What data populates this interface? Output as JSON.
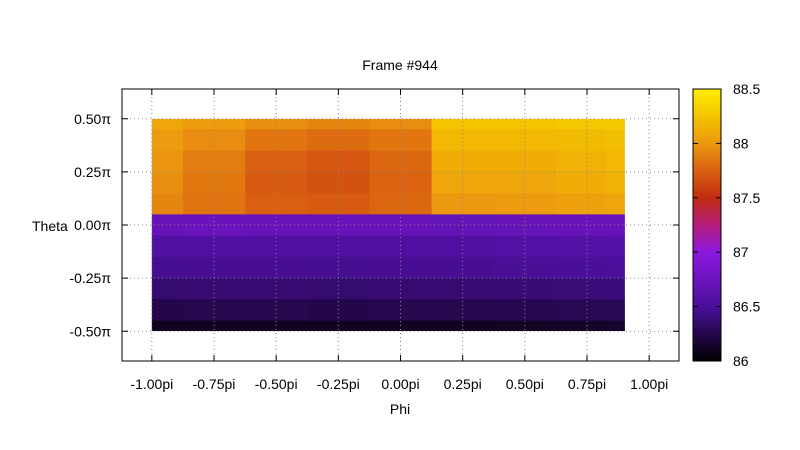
{
  "chart_data": {
    "type": "heatmap",
    "title": "Frame #944",
    "xlabel": "Phi",
    "ylabel": "Theta",
    "x_range": [
      -1.0,
      1.0
    ],
    "y_range": [
      -0.5,
      0.5
    ],
    "x_plot_range": [
      -1.12,
      1.12
    ],
    "y_plot_range": [
      -0.64,
      0.64
    ],
    "x_ticks": [
      {
        "value": -1.0,
        "label": "-1.00pi"
      },
      {
        "value": -0.75,
        "label": "-0.75pi"
      },
      {
        "value": -0.5,
        "label": "-0.50pi"
      },
      {
        "value": -0.25,
        "label": "-0.25pi"
      },
      {
        "value": 0.0,
        "label": "0.00pi"
      },
      {
        "value": 0.25,
        "label": "0.25pi"
      },
      {
        "value": 0.5,
        "label": "0.50pi"
      },
      {
        "value": 0.75,
        "label": "0.75pi"
      },
      {
        "value": 1.0,
        "label": "1.00pi"
      }
    ],
    "y_ticks": [
      {
        "value": 0.5,
        "label": "0.50π"
      },
      {
        "value": 0.25,
        "label": "0.25π"
      },
      {
        "value": 0.0,
        "label": "0.00π"
      },
      {
        "value": -0.25,
        "label": "-0.25π"
      },
      {
        "value": -0.5,
        "label": "-0.50π"
      }
    ],
    "colorbar": {
      "min": 86,
      "max": 88.5,
      "ticks": [
        {
          "value": 88.5,
          "label": "88.5"
        },
        {
          "value": 88,
          "label": "88"
        },
        {
          "value": 87.5,
          "label": "87.5"
        },
        {
          "value": 87,
          "label": "87"
        },
        {
          "value": 86.5,
          "label": "86.5"
        },
        {
          "value": 86,
          "label": "86"
        }
      ],
      "stops": [
        {
          "offset": 0.0,
          "color": "#000000"
        },
        {
          "offset": 0.2,
          "color": "#4a0f9a"
        },
        {
          "offset": 0.4,
          "color": "#8c18e0"
        },
        {
          "offset": 0.5,
          "color": "#b61d7a"
        },
        {
          "offset": 0.6,
          "color": "#c02d10"
        },
        {
          "offset": 0.7,
          "color": "#d96010"
        },
        {
          "offset": 0.8,
          "color": "#ec9810"
        },
        {
          "offset": 0.9,
          "color": "#f4c400"
        },
        {
          "offset": 1.0,
          "color": "#ffee00"
        }
      ]
    },
    "grid": true,
    "cells": {
      "x": [
        -1.0,
        -0.75,
        -0.5,
        -0.25,
        0.0,
        0.25,
        0.5,
        0.75,
        0.9
      ],
      "y": [
        0.5,
        0.4,
        0.3,
        0.2,
        0.1,
        0.0,
        -0.1,
        -0.2,
        -0.3,
        -0.4,
        -0.5
      ],
      "z": [
        [
          88.08,
          88.03,
          87.96,
          87.92,
          87.95,
          88.25,
          88.25,
          88.27,
          88.28
        ],
        [
          88.02,
          87.95,
          87.85,
          87.8,
          87.85,
          88.18,
          88.18,
          88.2,
          88.22
        ],
        [
          87.98,
          87.88,
          87.75,
          87.7,
          87.78,
          88.12,
          88.12,
          88.15,
          88.18
        ],
        [
          87.96,
          87.86,
          87.72,
          87.68,
          87.76,
          88.08,
          88.08,
          88.12,
          88.15
        ],
        [
          87.92,
          87.84,
          87.75,
          87.72,
          87.78,
          88.0,
          88.02,
          88.05,
          88.08
        ],
        [
          86.72,
          86.74,
          86.73,
          86.72,
          86.73,
          86.7,
          86.71,
          86.72,
          86.73
        ],
        [
          86.55,
          86.56,
          86.55,
          86.55,
          86.56,
          86.56,
          86.57,
          86.58,
          86.59
        ],
        [
          86.47,
          86.48,
          86.48,
          86.47,
          86.48,
          86.48,
          86.49,
          86.5,
          86.51
        ],
        [
          86.36,
          86.37,
          86.37,
          86.36,
          86.37,
          86.37,
          86.38,
          86.39,
          86.4
        ],
        [
          86.24,
          86.25,
          86.25,
          86.24,
          86.25,
          86.25,
          86.26,
          86.27,
          86.28
        ],
        [
          86.1,
          86.11,
          86.11,
          86.1,
          86.11,
          86.11,
          86.12,
          86.13,
          86.14
        ]
      ]
    }
  }
}
